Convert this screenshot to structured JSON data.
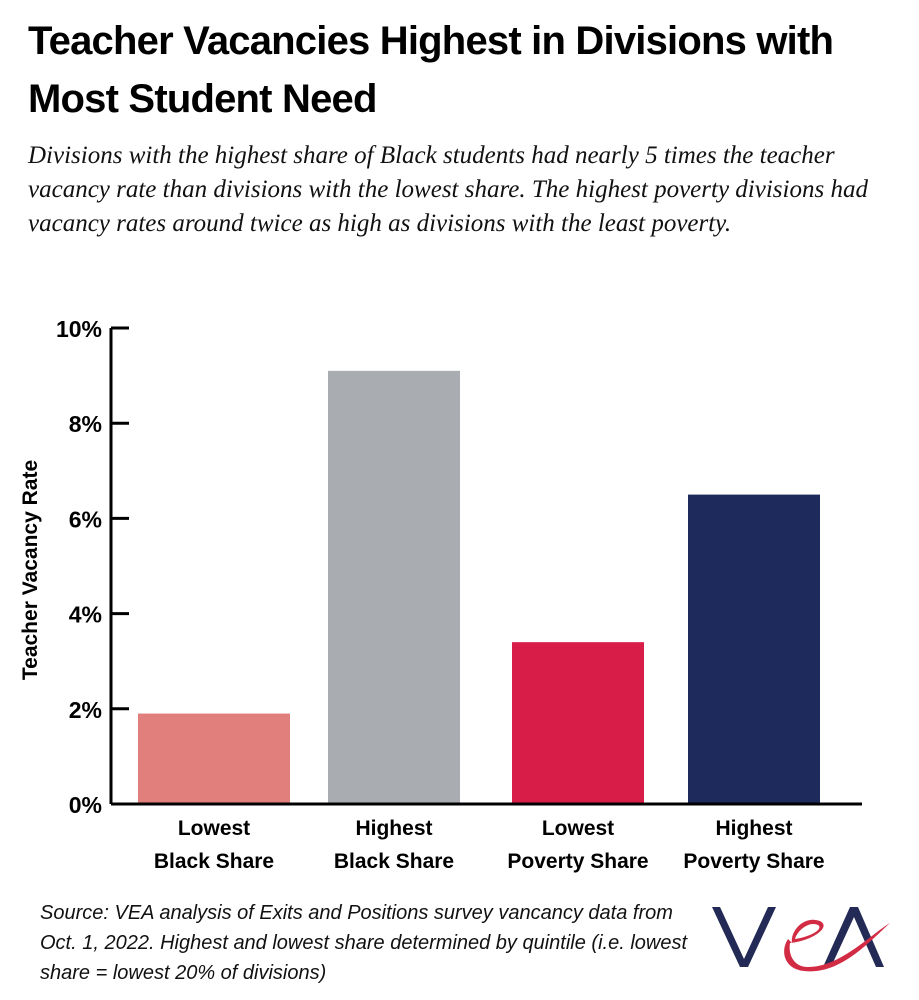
{
  "title": "Teacher Vacancies Highest in Divisions with Most Student Need",
  "subtitle": "Divisions with the highest share of Black students had nearly 5 times the teacher vacancy rate than divisions with the lowest share. The highest poverty divisions had vacancy rates around twice as high as divisions with the least poverty.",
  "source": "Source: VEA analysis of Exits and Positions survey vancancy data from Oct. 1, 2022. Highest and lowest share determined by quintile (i.e. lowest share = lowest 20% of divisions)",
  "logo": "VEA",
  "chart_data": {
    "type": "bar",
    "categories": [
      [
        "Lowest",
        "Black Share"
      ],
      [
        "Highest",
        "Black Share"
      ],
      [
        "Lowest",
        "Poverty Share"
      ],
      [
        "Highest",
        "Poverty Share"
      ]
    ],
    "values": [
      1.9,
      9.1,
      3.4,
      6.5
    ],
    "colors": [
      "#e17f7c",
      "#a9acb1",
      "#d81e48",
      "#1f2a5c"
    ],
    "ylabel": "Teacher Vacancy Rate",
    "xlabel": "",
    "ylim": [
      0,
      10
    ],
    "yticks": [
      "0%",
      "2%",
      "4%",
      "6%",
      "8%",
      "10%"
    ],
    "ytick_values": [
      0,
      2,
      4,
      6,
      8,
      10
    ],
    "grid": false,
    "legend": "none"
  }
}
